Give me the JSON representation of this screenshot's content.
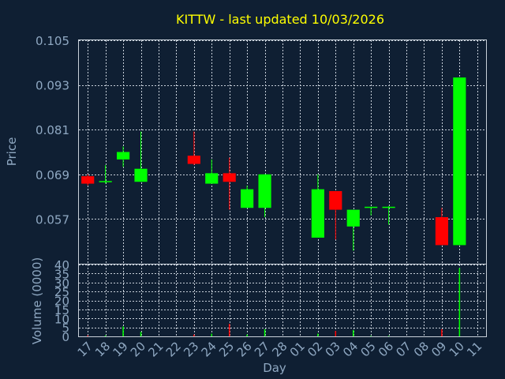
{
  "chart_data": [
    {
      "type": "candlestick",
      "title": "KITTW - last updated 10/03/2026",
      "ylabel": "Price",
      "ylim": [
        0.045,
        0.105
      ],
      "y_ticks": [
        "0.105",
        "0.093",
        "0.081",
        "0.069",
        "0.057"
      ],
      "y_tick_values": [
        0.105,
        0.093,
        0.081,
        0.069,
        0.057
      ],
      "grid": true,
      "up_color": "#00ff00",
      "down_color": "#ff0000",
      "categories": [
        "17",
        "18",
        "19",
        "20",
        "21",
        "22",
        "23",
        "24",
        "25",
        "26",
        "27",
        "28",
        "01",
        "02",
        "03",
        "04",
        "05",
        "06",
        "07",
        "08",
        "09",
        "10",
        "11"
      ],
      "candles": [
        {
          "day": "17",
          "open": 0.0685,
          "high": 0.069,
          "low": 0.066,
          "close": 0.0665
        },
        {
          "day": "18",
          "open": 0.067,
          "high": 0.0715,
          "low": 0.0665,
          "close": 0.0672
        },
        {
          "day": "19",
          "open": 0.073,
          "high": 0.0765,
          "low": 0.071,
          "close": 0.075
        },
        {
          "day": "20",
          "open": 0.067,
          "high": 0.0805,
          "low": 0.067,
          "close": 0.0705
        },
        {
          "day": "23",
          "open": 0.074,
          "high": 0.0805,
          "low": 0.0715,
          "close": 0.0718
        },
        {
          "day": "24",
          "open": 0.0665,
          "high": 0.073,
          "low": 0.0665,
          "close": 0.0693
        },
        {
          "day": "25",
          "open": 0.0693,
          "high": 0.0735,
          "low": 0.0595,
          "close": 0.067
        },
        {
          "day": "26",
          "open": 0.06,
          "high": 0.066,
          "low": 0.06,
          "close": 0.065
        },
        {
          "day": "27",
          "open": 0.06,
          "high": 0.069,
          "low": 0.0575,
          "close": 0.069
        },
        {
          "day": "02",
          "open": 0.052,
          "high": 0.069,
          "low": 0.052,
          "close": 0.065
        },
        {
          "day": "03",
          "open": 0.0645,
          "high": 0.0645,
          "low": 0.0515,
          "close": 0.0595
        },
        {
          "day": "04",
          "open": 0.055,
          "high": 0.0595,
          "low": 0.0485,
          "close": 0.0595
        },
        {
          "day": "05",
          "open": 0.06,
          "high": 0.06,
          "low": 0.058,
          "close": 0.0603
        },
        {
          "day": "06",
          "open": 0.06,
          "high": 0.0605,
          "low": 0.0555,
          "close": 0.0603
        },
        {
          "day": "09",
          "open": 0.0575,
          "high": 0.06,
          "low": 0.05,
          "close": 0.05
        },
        {
          "day": "10",
          "open": 0.05,
          "high": 0.095,
          "low": 0.05,
          "close": 0.095
        }
      ]
    },
    {
      "type": "bar",
      "ylabel": "Volume (0000)",
      "xlabel": "Day",
      "ylim": [
        0,
        40
      ],
      "y_ticks": [
        "40",
        "35",
        "30",
        "25",
        "20",
        "15",
        "10",
        "5",
        "0"
      ],
      "y_tick_values": [
        40,
        35,
        30,
        25,
        20,
        15,
        10,
        5,
        0
      ],
      "categories": [
        "17",
        "18",
        "19",
        "20",
        "21",
        "22",
        "23",
        "24",
        "25",
        "26",
        "27",
        "28",
        "01",
        "02",
        "03",
        "04",
        "05",
        "06",
        "07",
        "08",
        "09",
        "10",
        "11"
      ],
      "series": [
        {
          "points": [
            {
              "day": "17",
              "value": 0.5,
              "color": "#ff0000"
            },
            {
              "day": "18",
              "value": 0.5,
              "color": "#00ff00"
            },
            {
              "day": "19",
              "value": 5.5,
              "color": "#00ff00"
            },
            {
              "day": "20",
              "value": 2.5,
              "color": "#00ff00"
            },
            {
              "day": "23",
              "value": 1.0,
              "color": "#ff0000"
            },
            {
              "day": "24",
              "value": 1.5,
              "color": "#00ff00"
            },
            {
              "day": "25",
              "value": 7.0,
              "color": "#ff0000"
            },
            {
              "day": "26",
              "value": 1.0,
              "color": "#00ff00"
            },
            {
              "day": "27",
              "value": 4.0,
              "color": "#00ff00"
            },
            {
              "day": "02",
              "value": 1.5,
              "color": "#00ff00"
            },
            {
              "day": "03",
              "value": 3.0,
              "color": "#ff0000"
            },
            {
              "day": "04",
              "value": 3.5,
              "color": "#00ff00"
            },
            {
              "day": "05",
              "value": 0.3,
              "color": "#00ff00"
            },
            {
              "day": "06",
              "value": 0.3,
              "color": "#00ff00"
            },
            {
              "day": "09",
              "value": 4.0,
              "color": "#ff0000"
            },
            {
              "day": "10",
              "value": 38.0,
              "color": "#00ff00"
            }
          ]
        }
      ]
    }
  ]
}
